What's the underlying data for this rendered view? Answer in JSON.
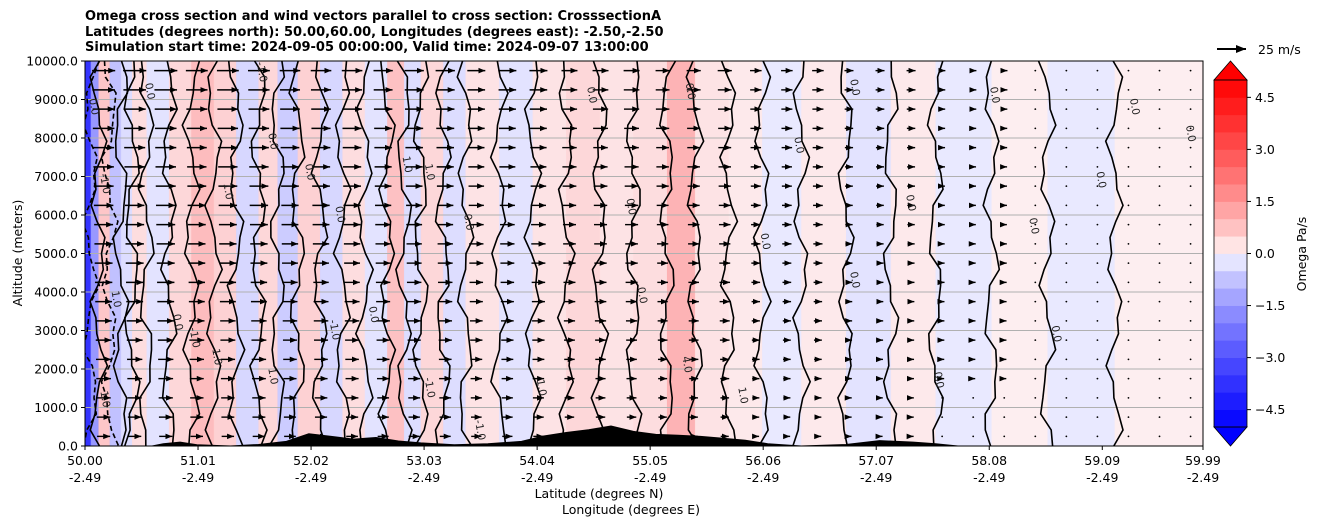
{
  "chart_data": {
    "type": "heatmap",
    "title_lines": [
      "Omega cross section and wind vectors parallel to cross section: CrosssectionA",
      "Latitudes (degrees north): 50.00,60.00, Longitudes (degrees east): -2.50,-2.50",
      "Simulation start time: 2024-09-05 00:00:00, Valid time: 2024-09-07 13:00:00"
    ],
    "ylabel": "Altitude (meters)",
    "xlabel_line1": "Latitude (degrees N)",
    "xlabel_line2": "Longitude (degrees E)",
    "ylim": [
      0,
      10000
    ],
    "yticks": [
      "0.0",
      "1000.0",
      "2000.0",
      "3000.0",
      "4000.0",
      "5000.0",
      "6000.0",
      "7000.0",
      "8000.0",
      "9000.0",
      "10000.0"
    ],
    "xlim": [
      50.0,
      59.99
    ],
    "xticks": [
      {
        "lat": "50.00",
        "lon": "-2.49"
      },
      {
        "lat": "51.01",
        "lon": "-2.49"
      },
      {
        "lat": "52.02",
        "lon": "-2.49"
      },
      {
        "lat": "53.03",
        "lon": "-2.49"
      },
      {
        "lat": "54.04",
        "lon": "-2.49"
      },
      {
        "lat": "55.05",
        "lon": "-2.49"
      },
      {
        "lat": "56.06",
        "lon": "-2.49"
      },
      {
        "lat": "57.07",
        "lon": "-2.49"
      },
      {
        "lat": "58.08",
        "lon": "-2.49"
      },
      {
        "lat": "59.09",
        "lon": "-2.49"
      },
      {
        "lat": "59.99",
        "lon": "-2.49"
      }
    ],
    "grid": "horizontal",
    "colorbar": {
      "label": "Omega Pa/s",
      "range": [
        -5.0,
        5.0
      ],
      "ticks": [
        "4.5",
        "3.0",
        "1.5",
        "0.0",
        "−1.5",
        "−3.0",
        "−4.5"
      ],
      "extend": "both",
      "colormap": "bwr"
    },
    "quiver_key": {
      "label": "25 m/s"
    },
    "vector_strength_profile": [
      0.9,
      0.85,
      0.8,
      0.75,
      0.7,
      0.62,
      0.55,
      0.45,
      0.35,
      0.25,
      0.12,
      0.05
    ],
    "bands": [
      {
        "x0": 50.0,
        "x1": 50.05,
        "v": -4.5
      },
      {
        "x0": 50.05,
        "x1": 50.12,
        "v": -1.8
      },
      {
        "x0": 50.12,
        "x1": 50.22,
        "v": 0.8
      },
      {
        "x0": 50.22,
        "x1": 50.32,
        "v": -0.9
      },
      {
        "x0": 50.32,
        "x1": 50.42,
        "v": -0.4
      },
      {
        "x0": 50.42,
        "x1": 50.55,
        "v": 0.4
      },
      {
        "x0": 50.55,
        "x1": 50.75,
        "v": -0.3
      },
      {
        "x0": 50.75,
        "x1": 50.95,
        "v": 0.5
      },
      {
        "x0": 50.95,
        "x1": 51.15,
        "v": 1.0
      },
      {
        "x0": 51.15,
        "x1": 51.35,
        "v": 0.6
      },
      {
        "x0": 51.35,
        "x1": 51.55,
        "v": -0.5
      },
      {
        "x0": 51.55,
        "x1": 51.72,
        "v": 0.5
      },
      {
        "x0": 51.72,
        "x1": 51.9,
        "v": -0.7
      },
      {
        "x0": 51.9,
        "x1": 52.1,
        "v": 0.6
      },
      {
        "x0": 52.1,
        "x1": 52.3,
        "v": -0.5
      },
      {
        "x0": 52.3,
        "x1": 52.5,
        "v": 0.4
      },
      {
        "x0": 52.5,
        "x1": 52.7,
        "v": -0.3
      },
      {
        "x0": 52.7,
        "x1": 52.85,
        "v": 0.9
      },
      {
        "x0": 52.85,
        "x1": 53.0,
        "v": -0.4
      },
      {
        "x0": 53.0,
        "x1": 53.2,
        "v": 0.5
      },
      {
        "x0": 53.2,
        "x1": 53.4,
        "v": -0.4
      },
      {
        "x0": 53.4,
        "x1": 53.7,
        "v": 0.3
      },
      {
        "x0": 53.7,
        "x1": 54.0,
        "v": -0.3
      },
      {
        "x0": 54.0,
        "x1": 54.3,
        "v": 0.3
      },
      {
        "x0": 54.3,
        "x1": 54.6,
        "v": 0.5
      },
      {
        "x0": 54.6,
        "x1": 54.9,
        "v": 0.3
      },
      {
        "x0": 54.9,
        "x1": 55.2,
        "v": 0.4
      },
      {
        "x0": 55.2,
        "x1": 55.45,
        "v": 1.2
      },
      {
        "x0": 55.45,
        "x1": 55.75,
        "v": 0.3
      },
      {
        "x0": 55.75,
        "x1": 56.05,
        "v": 0.2
      },
      {
        "x0": 56.05,
        "x1": 56.4,
        "v": -0.2
      },
      {
        "x0": 56.4,
        "x1": 56.8,
        "v": 0.2
      },
      {
        "x0": 56.8,
        "x1": 57.2,
        "v": -0.3
      },
      {
        "x0": 57.2,
        "x1": 57.6,
        "v": 0.2
      },
      {
        "x0": 57.6,
        "x1": 58.1,
        "v": -0.2
      },
      {
        "x0": 58.1,
        "x1": 58.6,
        "v": 0.15
      },
      {
        "x0": 58.6,
        "x1": 59.2,
        "v": -0.2
      },
      {
        "x0": 59.2,
        "x1": 59.99,
        "v": 0.15
      }
    ],
    "contour_labels": [
      {
        "x": 50.05,
        "y": 8800,
        "text": "0.0"
      },
      {
        "x": 50.15,
        "y": 6800,
        "text": "-1.0"
      },
      {
        "x": 50.25,
        "y": 3800,
        "text": "1.0"
      },
      {
        "x": 50.15,
        "y": 1200,
        "text": "1.0"
      },
      {
        "x": 50.55,
        "y": 9200,
        "text": "0.0"
      },
      {
        "x": 50.8,
        "y": 3200,
        "text": "0.0"
      },
      {
        "x": 50.95,
        "y": 2800,
        "text": "-1.0"
      },
      {
        "x": 51.15,
        "y": 2300,
        "text": "1.0"
      },
      {
        "x": 51.25,
        "y": 6600,
        "text": "1.0"
      },
      {
        "x": 51.55,
        "y": 9700,
        "text": "-1.0"
      },
      {
        "x": 51.65,
        "y": 7900,
        "text": "0.0"
      },
      {
        "x": 51.65,
        "y": 1800,
        "text": "1.0"
      },
      {
        "x": 51.98,
        "y": 7100,
        "text": "0.0"
      },
      {
        "x": 52.2,
        "y": 3000,
        "text": "-1.0"
      },
      {
        "x": 52.25,
        "y": 6000,
        "text": "0.0"
      },
      {
        "x": 52.55,
        "y": 3400,
        "text": "0.0"
      },
      {
        "x": 52.85,
        "y": 7300,
        "text": "1.0"
      },
      {
        "x": 53.05,
        "y": 7100,
        "text": "1.0"
      },
      {
        "x": 53.05,
        "y": 1500,
        "text": "-1.0"
      },
      {
        "x": 53.4,
        "y": 5800,
        "text": "0.0"
      },
      {
        "x": 53.5,
        "y": 400,
        "text": "-1.0"
      },
      {
        "x": 54.05,
        "y": 1500,
        "text": "1.0"
      },
      {
        "x": 54.5,
        "y": 9100,
        "text": "0.0"
      },
      {
        "x": 54.85,
        "y": 6200,
        "text": "0.0"
      },
      {
        "x": 54.95,
        "y": 3900,
        "text": "0.0"
      },
      {
        "x": 55.35,
        "y": 2100,
        "text": "4.0"
      },
      {
        "x": 55.38,
        "y": 9200,
        "text": "0.0"
      },
      {
        "x": 55.85,
        "y": 1300,
        "text": "1.0"
      },
      {
        "x": 56.05,
        "y": 5300,
        "text": "0.0"
      },
      {
        "x": 56.35,
        "y": 7800,
        "text": "0.0"
      },
      {
        "x": 56.85,
        "y": 9300,
        "text": "0.0"
      },
      {
        "x": 56.85,
        "y": 4300,
        "text": "0.0"
      },
      {
        "x": 57.35,
        "y": 6300,
        "text": "0.0"
      },
      {
        "x": 57.6,
        "y": 1700,
        "text": "0.0"
      },
      {
        "x": 58.1,
        "y": 9100,
        "text": "0.0"
      },
      {
        "x": 58.45,
        "y": 5700,
        "text": "0.0"
      },
      {
        "x": 58.65,
        "y": 2900,
        "text": "0.0"
      },
      {
        "x": 59.05,
        "y": 6900,
        "text": "0.0"
      },
      {
        "x": 59.35,
        "y": 8800,
        "text": "0.0"
      },
      {
        "x": 59.85,
        "y": 8100,
        "text": "0.0"
      }
    ],
    "terrain": [
      {
        "x": 50.0,
        "y": 0
      },
      {
        "x": 50.6,
        "y": 0
      },
      {
        "x": 50.7,
        "y": 60
      },
      {
        "x": 50.85,
        "y": 100
      },
      {
        "x": 51.0,
        "y": 30
      },
      {
        "x": 51.3,
        "y": 0
      },
      {
        "x": 51.55,
        "y": 40
      },
      {
        "x": 51.8,
        "y": 120
      },
      {
        "x": 52.0,
        "y": 320
      },
      {
        "x": 52.2,
        "y": 250
      },
      {
        "x": 52.4,
        "y": 180
      },
      {
        "x": 52.6,
        "y": 220
      },
      {
        "x": 52.8,
        "y": 130
      },
      {
        "x": 53.0,
        "y": 80
      },
      {
        "x": 53.3,
        "y": 30
      },
      {
        "x": 53.6,
        "y": 60
      },
      {
        "x": 53.9,
        "y": 120
      },
      {
        "x": 54.1,
        "y": 260
      },
      {
        "x": 54.3,
        "y": 350
      },
      {
        "x": 54.5,
        "y": 420
      },
      {
        "x": 54.7,
        "y": 520
      },
      {
        "x": 54.9,
        "y": 380
      },
      {
        "x": 55.1,
        "y": 300
      },
      {
        "x": 55.3,
        "y": 280
      },
      {
        "x": 55.5,
        "y": 250
      },
      {
        "x": 55.7,
        "y": 200
      },
      {
        "x": 55.9,
        "y": 150
      },
      {
        "x": 56.1,
        "y": 60
      },
      {
        "x": 56.4,
        "y": 0
      },
      {
        "x": 56.8,
        "y": 40
      },
      {
        "x": 57.1,
        "y": 140
      },
      {
        "x": 57.4,
        "y": 100
      },
      {
        "x": 57.6,
        "y": 60
      },
      {
        "x": 57.8,
        "y": 0
      },
      {
        "x": 59.99,
        "y": 0
      }
    ]
  }
}
